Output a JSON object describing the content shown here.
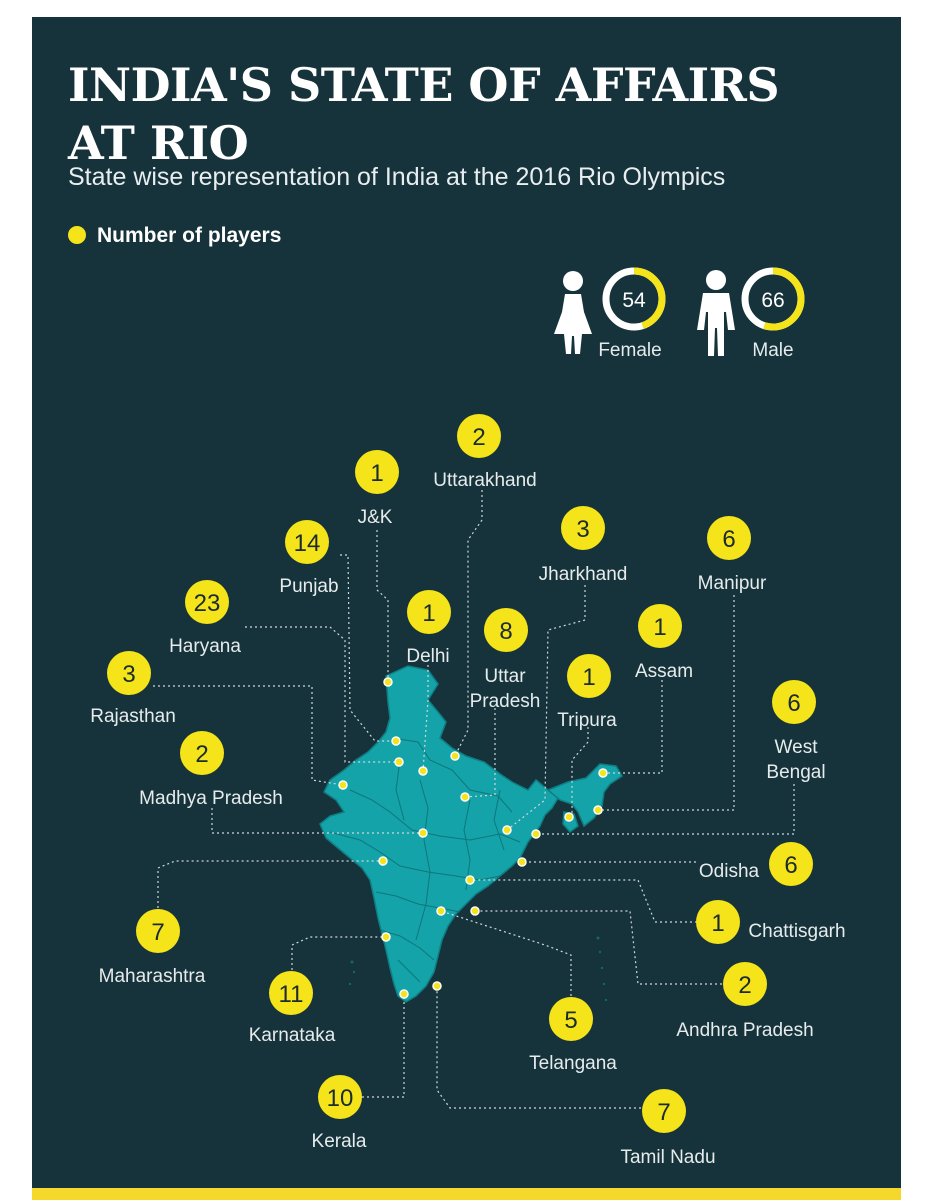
{
  "header": {
    "title_line1": "INDIA'S STATE OF AFFAIRS",
    "title_line2": "AT RIO",
    "subtitle": "State wise representation of India at the 2016 Rio Olympics"
  },
  "legend": {
    "label": "Number of players"
  },
  "gender": {
    "female": {
      "label": "Female",
      "count": "54",
      "share": 0.45
    },
    "male": {
      "label": "Male",
      "count": "66",
      "share": 0.55
    }
  },
  "colors": {
    "background": "#16333b",
    "accent": "#f4e419",
    "map": "#13a3a8",
    "text": "#e6ebec"
  },
  "chart_data": {
    "type": "table",
    "categories": [
      "J&K",
      "Uttarakhand",
      "Punjab",
      "Jharkhand",
      "Manipur",
      "Haryana",
      "Delhi",
      "Uttar Pradesh",
      "Assam",
      "Rajasthan",
      "Tripura",
      "West Bengal",
      "Madhya Pradesh",
      "Odisha",
      "Maharashtra",
      "Chattisgarh",
      "Karnataka",
      "Andhra Pradesh",
      "Telangana",
      "Kerala",
      "Tamil Nadu"
    ],
    "series": [
      {
        "name": "Number of players",
        "values": [
          1,
          2,
          14,
          3,
          6,
          23,
          1,
          8,
          1,
          3,
          1,
          6,
          2,
          6,
          7,
          1,
          11,
          2,
          5,
          10,
          7
        ]
      }
    ],
    "labels": {
      "uttar_pradesh": [
        "Uttar",
        "Pradesh"
      ],
      "west_bengal": [
        "West",
        "Bengal"
      ]
    }
  }
}
